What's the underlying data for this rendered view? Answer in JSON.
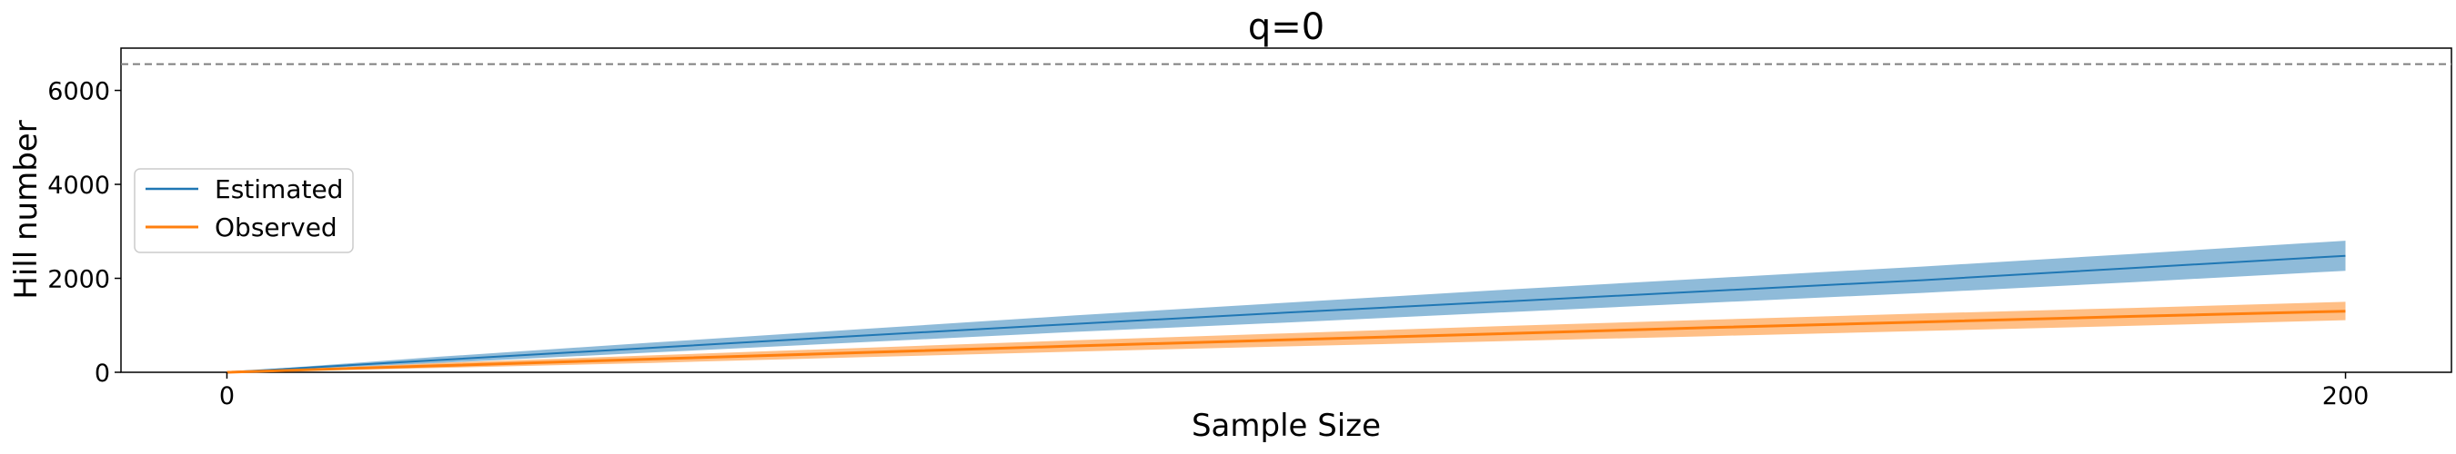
{
  "chart_data": {
    "type": "line",
    "title": "q=0",
    "xlabel": "Sample Size",
    "ylabel": "Hill number",
    "xlim": [
      -10,
      210
    ],
    "ylim": [
      0,
      6900
    ],
    "xticks": [
      0,
      200
    ],
    "yticks": [
      0,
      2000,
      4000,
      6000
    ],
    "reference_line": {
      "y": 6560,
      "style": "dashed",
      "color": "#7f7f7f"
    },
    "legend": {
      "placement": "center-left"
    },
    "grid": false,
    "series": [
      {
        "name": "Estimated",
        "color": "#1f77b4",
        "x": [
          0,
          20,
          40,
          60,
          80,
          100,
          120,
          140,
          160,
          180,
          200
        ],
        "y": [
          0,
          260,
          520,
          780,
          1030,
          1270,
          1500,
          1730,
          1960,
          2220,
          2480
        ],
        "lower": [
          0,
          200,
          420,
          640,
          860,
          1060,
          1270,
          1480,
          1690,
          1920,
          2160
        ],
        "upper": [
          0,
          330,
          630,
          920,
          1210,
          1480,
          1750,
          2000,
          2250,
          2520,
          2800
        ]
      },
      {
        "name": "Observed",
        "color": "#ff7f0e",
        "x": [
          0,
          20,
          40,
          60,
          80,
          100,
          120,
          140,
          160,
          180,
          200
        ],
        "y": [
          0,
          140,
          280,
          420,
          560,
          690,
          820,
          950,
          1070,
          1190,
          1300
        ],
        "lower": [
          0,
          90,
          200,
          320,
          440,
          550,
          660,
          770,
          880,
          990,
          1110
        ],
        "upper": [
          0,
          200,
          360,
          520,
          680,
          830,
          980,
          1120,
          1250,
          1370,
          1500
        ]
      }
    ]
  }
}
